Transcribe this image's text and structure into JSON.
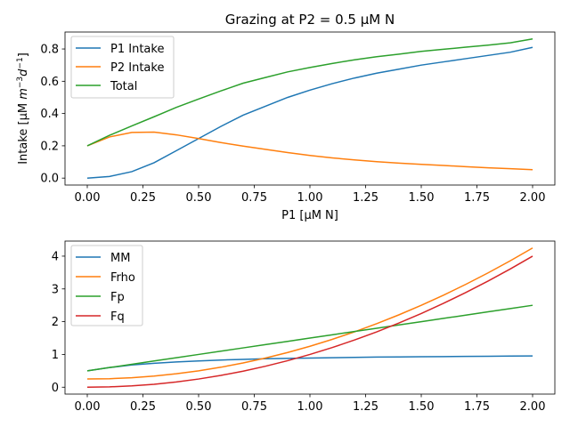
{
  "chart_data": [
    {
      "type": "line",
      "title": "Grazing at P2 = 0.5 μM N",
      "xlabel": "P1 [μM N]",
      "ylabel_main": "Intake [μM ",
      "ylabel_math": "m",
      "ylabel_exp1": "−3",
      "ylabel_math2": "d",
      "ylabel_exp2": "−1",
      "ylabel_close": "]",
      "xlim": [
        -0.1,
        2.1
      ],
      "ylim": [
        -0.043,
        0.905
      ],
      "xticks": [
        0.0,
        0.25,
        0.5,
        0.75,
        1.0,
        1.25,
        1.5,
        1.75,
        2.0
      ],
      "xtick_labels": [
        "0.00",
        "0.25",
        "0.50",
        "0.75",
        "1.00",
        "1.25",
        "1.50",
        "1.75",
        "2.00"
      ],
      "yticks": [
        0.0,
        0.2,
        0.4,
        0.6,
        0.8
      ],
      "ytick_labels": [
        "0.0",
        "0.2",
        "0.4",
        "0.6",
        "0.8"
      ],
      "legend_position": "upper-left",
      "x": [
        0.0,
        0.1,
        0.2,
        0.3,
        0.4,
        0.5,
        0.6,
        0.7,
        0.8,
        0.9,
        1.0,
        1.1,
        1.2,
        1.3,
        1.4,
        1.5,
        1.6,
        1.7,
        1.8,
        1.9,
        2.0
      ],
      "series": [
        {
          "name": "P1 Intake",
          "color": "#1f77b4",
          "values": [
            0.0,
            0.01,
            0.04,
            0.095,
            0.17,
            0.245,
            0.32,
            0.39,
            0.445,
            0.5,
            0.545,
            0.585,
            0.62,
            0.65,
            0.675,
            0.7,
            0.72,
            0.74,
            0.76,
            0.78,
            0.81
          ]
        },
        {
          "name": "P2 Intake",
          "color": "#ff7f0e",
          "values": [
            0.2,
            0.255,
            0.283,
            0.285,
            0.268,
            0.245,
            0.22,
            0.198,
            0.178,
            0.158,
            0.14,
            0.125,
            0.113,
            0.102,
            0.093,
            0.085,
            0.078,
            0.071,
            0.064,
            0.058,
            0.052
          ]
        },
        {
          "name": "Total",
          "color": "#2ca02c",
          "values": [
            0.2,
            0.265,
            0.323,
            0.38,
            0.438,
            0.49,
            0.54,
            0.588,
            0.623,
            0.658,
            0.685,
            0.71,
            0.733,
            0.752,
            0.768,
            0.785,
            0.798,
            0.811,
            0.824,
            0.838,
            0.862
          ]
        }
      ]
    },
    {
      "type": "line",
      "xlim": [
        -0.1,
        2.1
      ],
      "ylim": [
        -0.21,
        4.46
      ],
      "xticks": [
        0.0,
        0.25,
        0.5,
        0.75,
        1.0,
        1.25,
        1.5,
        1.75,
        2.0
      ],
      "xtick_labels": [
        "0.00",
        "0.25",
        "0.50",
        "0.75",
        "1.00",
        "1.25",
        "1.50",
        "1.75",
        "2.00"
      ],
      "yticks": [
        0,
        1,
        2,
        3,
        4
      ],
      "ytick_labels": [
        "0",
        "1",
        "2",
        "3",
        "4"
      ],
      "legend_position": "upper-left",
      "x": [
        0.0,
        0.1,
        0.2,
        0.3,
        0.4,
        0.5,
        0.6,
        0.7,
        0.8,
        0.9,
        1.0,
        1.1,
        1.2,
        1.3,
        1.4,
        1.5,
        1.6,
        1.7,
        1.8,
        1.9,
        2.0
      ],
      "series": [
        {
          "name": "MM",
          "color": "#1f77b4",
          "values": [
            0.5,
            0.6,
            0.68,
            0.73,
            0.77,
            0.8,
            0.83,
            0.85,
            0.87,
            0.88,
            0.89,
            0.9,
            0.91,
            0.92,
            0.925,
            0.93,
            0.935,
            0.94,
            0.945,
            0.95,
            0.955
          ]
        },
        {
          "name": "Frho",
          "color": "#ff7f0e",
          "values": [
            0.25,
            0.26,
            0.29,
            0.34,
            0.41,
            0.5,
            0.61,
            0.74,
            0.89,
            1.06,
            1.25,
            1.46,
            1.69,
            1.94,
            2.21,
            2.5,
            2.81,
            3.14,
            3.49,
            3.86,
            4.25
          ]
        },
        {
          "name": "Fp",
          "color": "#2ca02c",
          "values": [
            0.5,
            0.6,
            0.7,
            0.8,
            0.9,
            1.0,
            1.1,
            1.2,
            1.3,
            1.4,
            1.5,
            1.6,
            1.7,
            1.8,
            1.9,
            2.0,
            2.1,
            2.2,
            2.3,
            2.4,
            2.5
          ]
        },
        {
          "name": "Fq",
          "color": "#d62728",
          "values": [
            0.0,
            0.01,
            0.04,
            0.09,
            0.16,
            0.25,
            0.36,
            0.49,
            0.64,
            0.81,
            1.0,
            1.21,
            1.44,
            1.69,
            1.96,
            2.25,
            2.56,
            2.89,
            3.24,
            3.61,
            4.0
          ]
        }
      ]
    }
  ]
}
